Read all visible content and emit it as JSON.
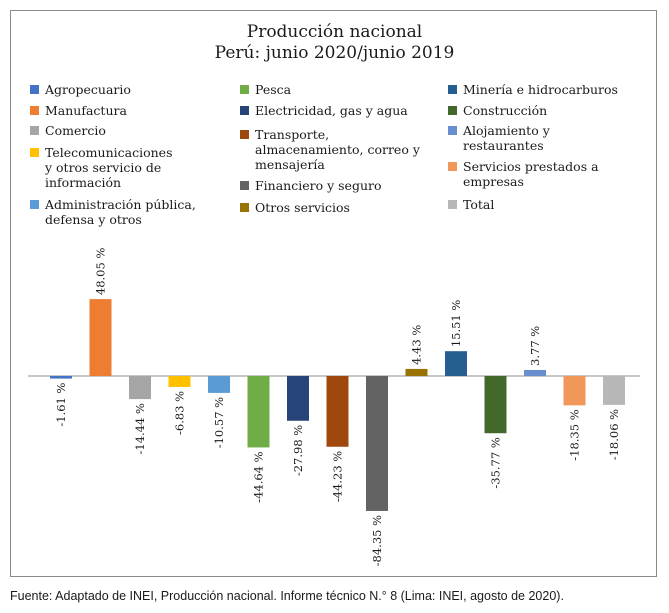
{
  "chart_data": {
    "type": "bar",
    "title": "Producción nacional",
    "subtitle": "Perú: junio 2020/junio 2019",
    "categories": [
      "Agropecuario",
      "Manufactura",
      "Comercio",
      "Telecomunicaciones\ny otros servicio de\ninformación",
      "Administración pública,\ndefensa y otros",
      "Pesca",
      "Electricidad, gas y agua",
      "Transporte,\nalmacenamiento, correo y\nmensajería",
      "Financiero y seguro",
      "Otros servicios",
      "Minería e hidrocarburos",
      "Construcción",
      "Alojamiento y\nrestaurantes",
      "Servicios prestados a\nempresas",
      "Total"
    ],
    "values": [
      -1.61,
      48.05,
      -14.44,
      -6.83,
      -10.57,
      -44.64,
      -27.98,
      -44.23,
      -84.35,
      4.43,
      15.51,
      -35.77,
      3.77,
      -18.35,
      -18.06
    ],
    "value_labels": [
      "-1.61 %",
      "48.05 %",
      "-14.44 %",
      "-6.83 %",
      "-10.57 %",
      "-44.64 %",
      "-27.98 %",
      "-44.23 %",
      "-84.35 %",
      "4.43 %",
      "15.51 %",
      "-35.77 %",
      "3.77 %",
      "-18.35 %",
      "-18.06 %"
    ],
    "colors": [
      "#4472c4",
      "#ed7d31",
      "#a5a5a5",
      "#ffc000",
      "#5b9bd5",
      "#70ad47",
      "#264478",
      "#9e480e",
      "#636363",
      "#997300",
      "#255e91",
      "#43682b",
      "#698ed0",
      "#f1975a",
      "#b7b7b7"
    ],
    "legend_order": [
      0,
      5,
      10,
      1,
      6,
      11,
      2,
      7,
      12,
      3,
      8,
      13,
      4,
      9,
      14
    ],
    "ylim": [
      -90,
      50
    ],
    "grid": false,
    "legend_position": "top"
  },
  "source": "Fuente: Adaptado de INEI, Producción nacional. Informe técnico N.° 8 (Lima: INEI, agosto de 2020)."
}
